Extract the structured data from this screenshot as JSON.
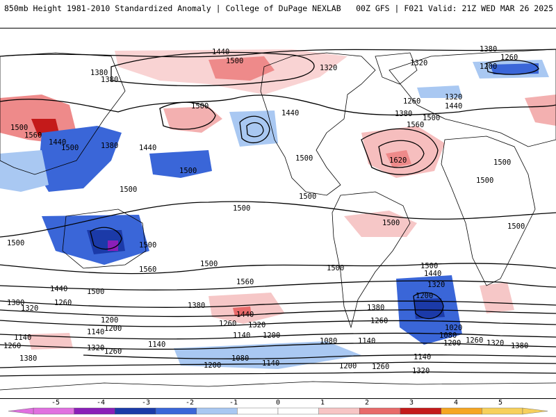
{
  "header": {
    "title": "850mb Height 1981-2010 Standardized Anomaly | College of DuPage NEXLAB",
    "run_info": "00Z GFS | F021 Valid: 21Z WED MAR 26 2025"
  },
  "contour_labels": {
    "c1380a": "1380",
    "c1380b": "1380",
    "c1380c": "1380",
    "c1380d": "1380",
    "c1380e": "1380",
    "c1380f": "1380",
    "c1380g": "1380",
    "c1440a": "1440",
    "c1440b": "1440",
    "c1440c": "1440",
    "c1440d": "1440",
    "c1440e": "1440",
    "c1440f": "1440",
    "c1440g": "1440",
    "c1440h": "1440",
    "c1500a": "1500",
    "c1500b": "1500",
    "c1500c": "1500",
    "c1500d": "1500",
    "c1500e": "1500",
    "c1500f": "1500",
    "c1500g": "1500",
    "c1500h": "1500",
    "c1500i": "1500",
    "c1500j": "1500",
    "c1500k": "1500",
    "c1500l": "1500",
    "c1500m": "1500",
    "c1500n": "1500",
    "c1500o": "1500",
    "c1500p": "1500",
    "c1500q": "1500",
    "c1500r": "1500",
    "c1500s": "1500",
    "c1500t": "1500",
    "c1500u": "1500",
    "c1560a": "1560",
    "c1560b": "1560",
    "c1560c": "1560",
    "c1560d": "1560",
    "c1620": "1620",
    "c1320a": "1320",
    "c1320b": "1320",
    "c1320c": "1320",
    "c1320d": "1320",
    "c1320e": "1320",
    "c1320f": "1320",
    "c1320g": "1320",
    "c1320h": "1320",
    "c1260a": "1260",
    "c1260b": "1260",
    "c1260c": "1260",
    "c1260d": "1260",
    "c1260e": "1260",
    "c1260f": "1260",
    "c1260g": "1260",
    "c1200a": "1200",
    "c1200b": "1200",
    "c1200c": "1200",
    "c1200d": "1200",
    "c1200e": "1200",
    "c1200f": "1200",
    "c1200g": "1200",
    "c1200h": "1200",
    "c1140a": "1140",
    "c1140b": "1140",
    "c1140c": "1140",
    "c1140d": "1140",
    "c1140e": "1140",
    "c1140f": "1140",
    "c1080a": "1080",
    "c1080b": "1080",
    "c1080c": "1080",
    "c1020": "1020"
  },
  "colorbar": {
    "ticks": [
      "-5",
      "-4",
      "-3",
      "-2",
      "-1",
      "0",
      "1",
      "2",
      "3",
      "4",
      "5"
    ],
    "colors": [
      "#e070e0",
      "#8a1fb8",
      "#1b3aa8",
      "#3a66d8",
      "#a9c8f2",
      "#ffffff",
      "#ffffff",
      "#f7c5c5",
      "#e86a6a",
      "#c41a1a",
      "#f5a623",
      "#f7d05c"
    ]
  }
}
